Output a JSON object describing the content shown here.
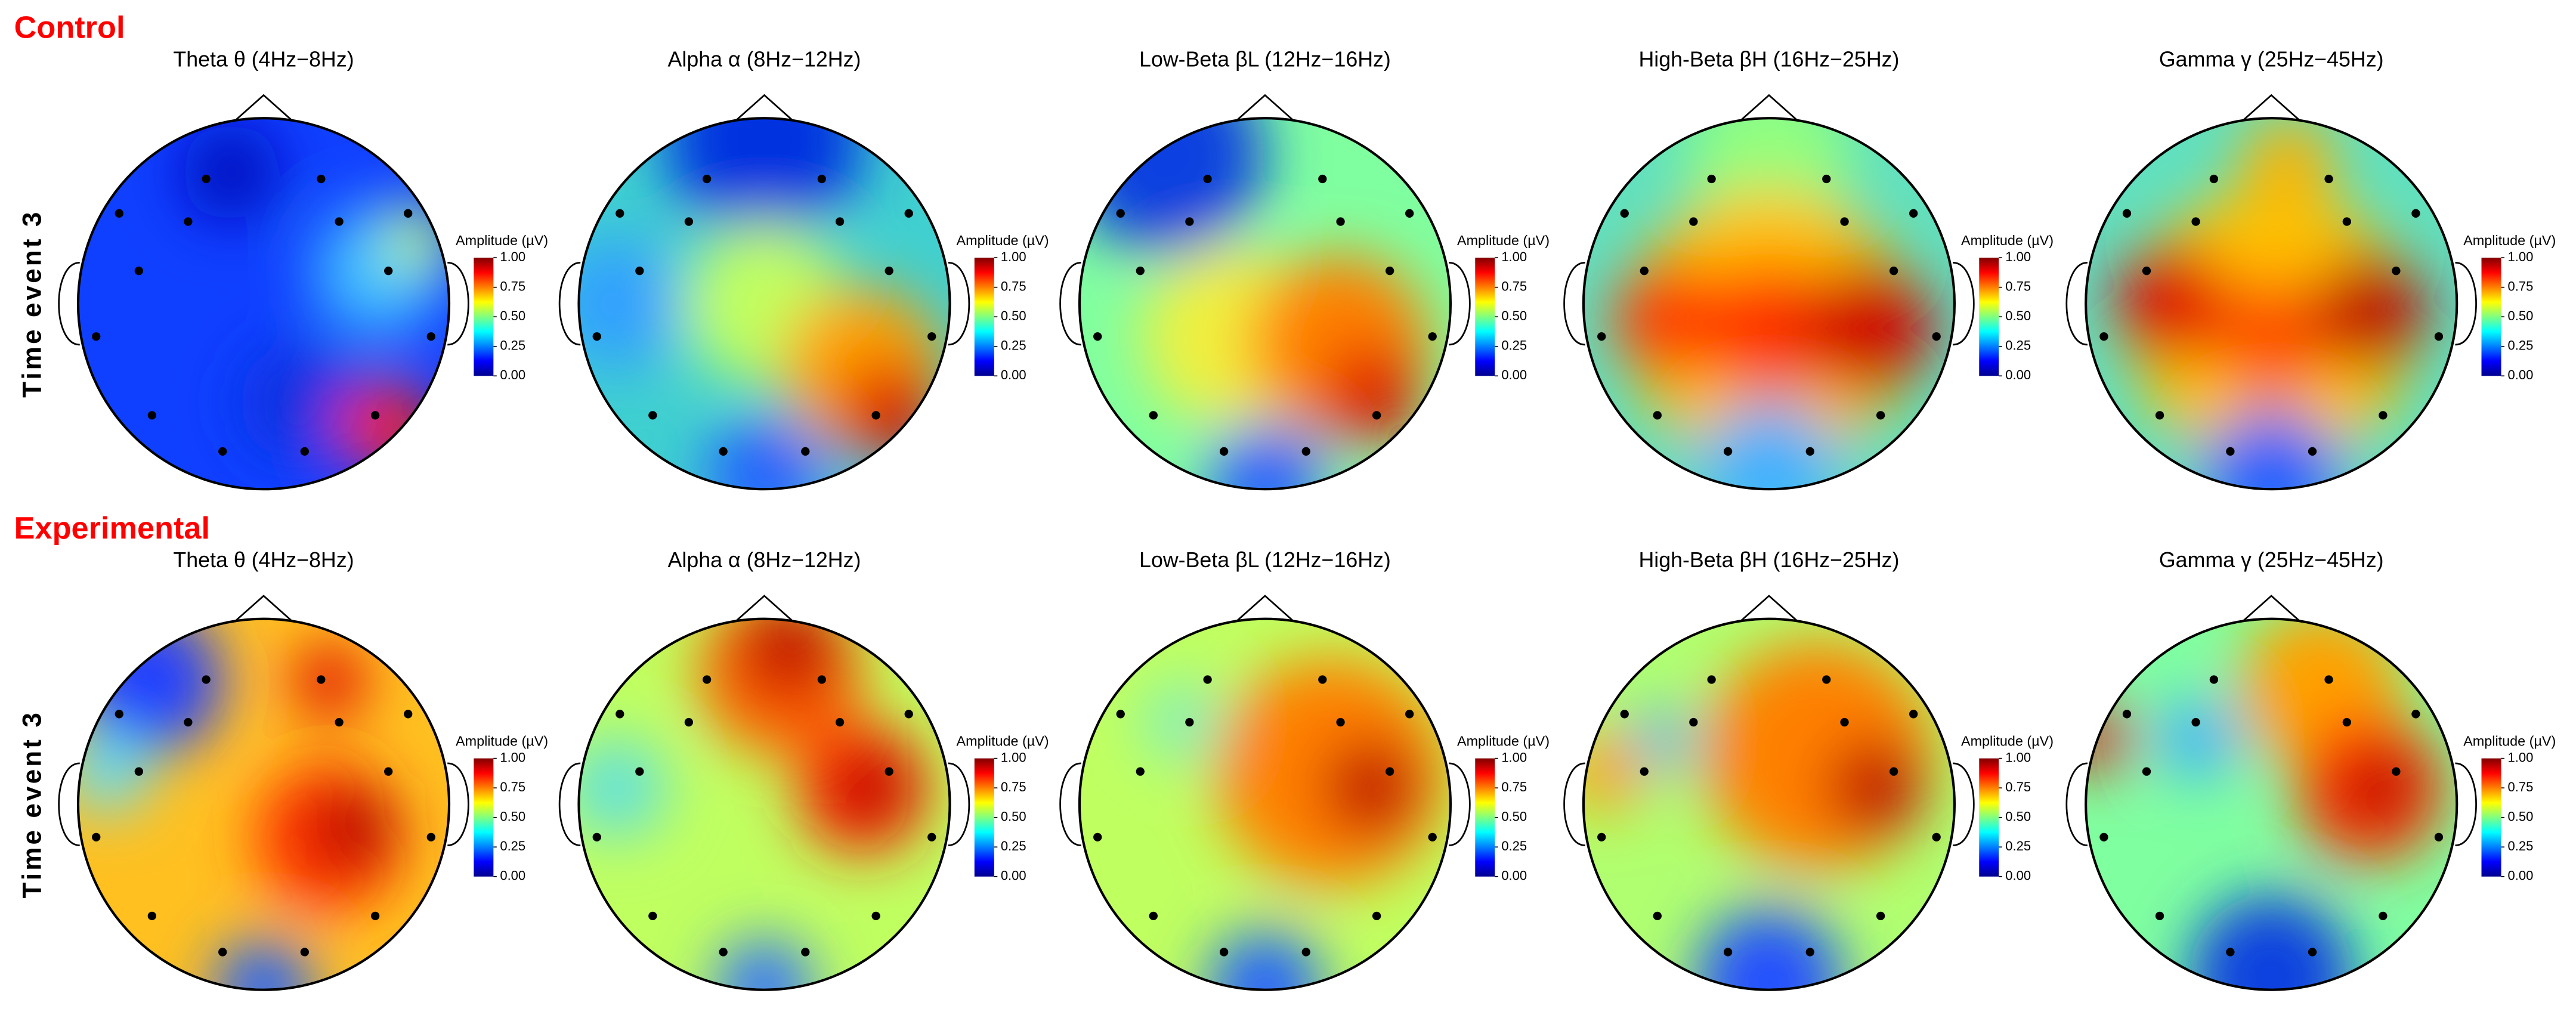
{
  "rows": [
    {
      "group": "Control",
      "row_label": "Time event 3",
      "panels": [
        "Theta θ (4Hz−8Hz)",
        "Alpha α (8Hz−12Hz)",
        "Low-Beta βL (12Hz−16Hz)",
        "High-Beta βH (16Hz−25Hz)",
        "Gamma γ (25Hz−45Hz)"
      ]
    },
    {
      "group": "Experimental",
      "row_label": "Time event 3",
      "panels": [
        "Theta θ (4Hz−8Hz)",
        "Alpha α (8Hz−12Hz)",
        "Low-Beta βL (12Hz−16Hz)",
        "High-Beta βH (16Hz−25Hz)",
        "Gamma γ (25Hz−45Hz)"
      ]
    }
  ],
  "colorbar": {
    "label": "Amplitude (µV)",
    "lim": [
      0,
      1
    ],
    "ticks": [
      {
        "value": 0,
        "label": "0.00"
      },
      {
        "value": 0.25,
        "label": "0.25"
      },
      {
        "value": 0.5,
        "label": "0.50"
      },
      {
        "value": 0.75,
        "label": "0.75"
      },
      {
        "value": 1,
        "label": "1.00"
      }
    ],
    "colors": [
      "#00008f",
      "#0000ff",
      "#0080ff",
      "#00ffff",
      "#80ff80",
      "#ffff00",
      "#ff8000",
      "#ff0000",
      "#800000"
    ]
  }
}
